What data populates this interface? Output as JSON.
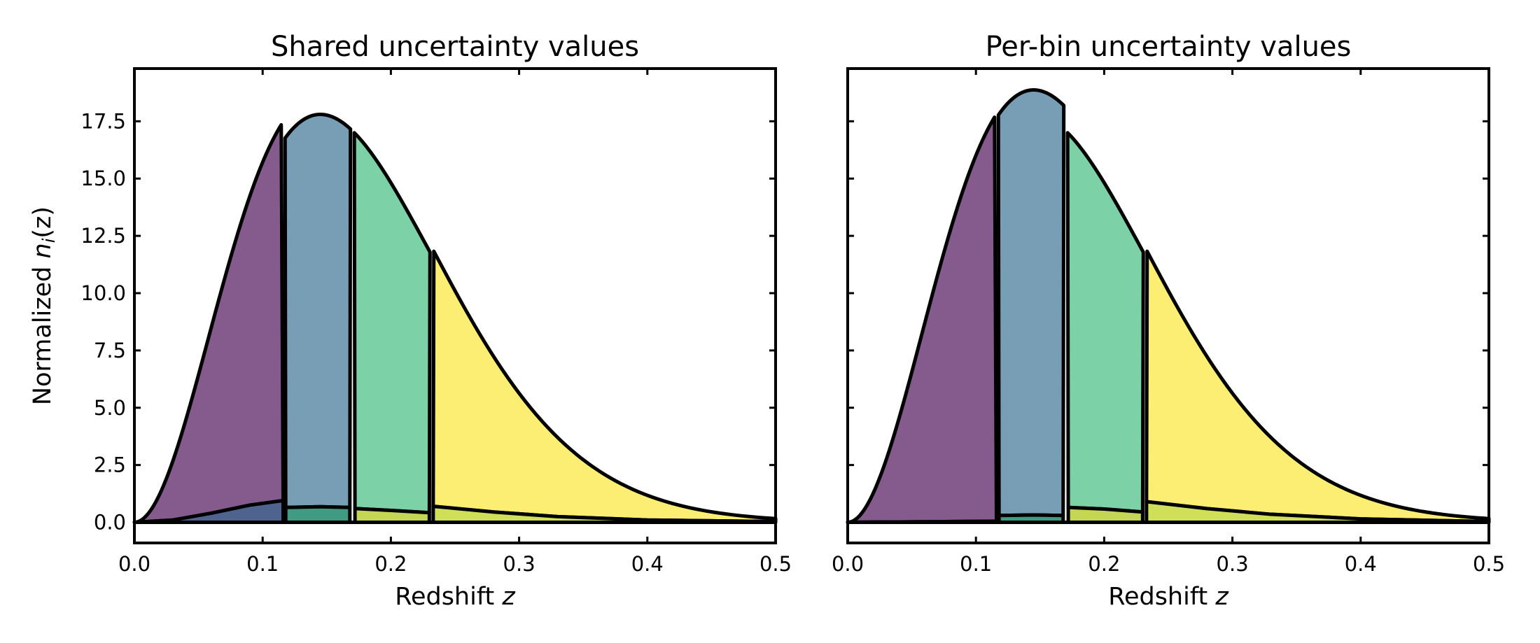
{
  "chart_data": {
    "type": "area",
    "shared": {
      "xlim": [
        0.0,
        0.5
      ],
      "ylim": [
        -0.9,
        19.8
      ],
      "xticks": [
        0.0,
        0.1,
        0.2,
        0.3,
        0.4,
        0.5
      ],
      "xtick_labels": [
        "0.0",
        "0.1",
        "0.2",
        "0.3",
        "0.4",
        "0.5"
      ],
      "yticks": [
        0.0,
        2.5,
        5.0,
        7.5,
        10.0,
        12.5,
        15.0,
        17.5
      ],
      "ytick_labels": [
        "0.0",
        "2.5",
        "5.0",
        "7.5",
        "10.0",
        "12.5",
        "15.0",
        "17.5"
      ],
      "xlabel": "Redshift z",
      "xlabel_main": "Redshift ",
      "xlabel_var": "z",
      "ylabel_main": "Normalized ",
      "ylabel_var": "n",
      "ylabel_sub": "i",
      "ylabel_tail": "(z)",
      "bin_edges": [
        0.0,
        0.116,
        0.17,
        0.232,
        0.5
      ],
      "bin_colors": [
        "#845b8c",
        "#789eb6",
        "#7cd1a7",
        "#fcee72"
      ],
      "band_colors": [
        "#4f638f",
        "#3f9c83",
        "#c4d653",
        "#cfdf58"
      ],
      "grid": false,
      "base_shape": "n(z) ∝ z^2 exp(-(z/0.1197)^1.5), peak-normalized"
    },
    "panels": [
      {
        "title": "Shared uncertainty values",
        "show_ylabel": true,
        "peak_value": 17.8,
        "bin_scales": [
          1.05,
          1.0,
          1.0,
          1.03
        ],
        "lower_bands": [
          {
            "x": [
              0.0,
              0.03,
              0.06,
              0.09,
              0.116
            ],
            "y": [
              0.0,
              0.1,
              0.4,
              0.75,
              0.95
            ]
          },
          {
            "x": [
              0.118,
              0.145,
              0.168
            ],
            "y": [
              0.65,
              0.68,
              0.65
            ]
          },
          {
            "x": [
              0.172,
              0.2,
              0.23
            ],
            "y": [
              0.6,
              0.52,
              0.42
            ]
          },
          {
            "x": [
              0.233,
              0.28,
              0.33,
              0.4,
              0.5
            ],
            "y": [
              0.7,
              0.45,
              0.25,
              0.1,
              0.03
            ]
          }
        ]
      },
      {
        "title": "Per-bin uncertainty values",
        "show_ylabel": false,
        "peak_value": 17.8,
        "bin_scales": [
          1.07,
          1.06,
          1.0,
          1.03
        ],
        "lower_bands": [
          {
            "x": [
              0.0,
              0.116
            ],
            "y": [
              0.0,
              0.05
            ]
          },
          {
            "x": [
              0.118,
              0.145,
              0.168
            ],
            "y": [
              0.3,
              0.32,
              0.3
            ]
          },
          {
            "x": [
              0.172,
              0.2,
              0.23
            ],
            "y": [
              0.65,
              0.58,
              0.45
            ]
          },
          {
            "x": [
              0.233,
              0.28,
              0.33,
              0.4,
              0.5
            ],
            "y": [
              0.9,
              0.6,
              0.35,
              0.15,
              0.03
            ]
          }
        ]
      }
    ]
  }
}
